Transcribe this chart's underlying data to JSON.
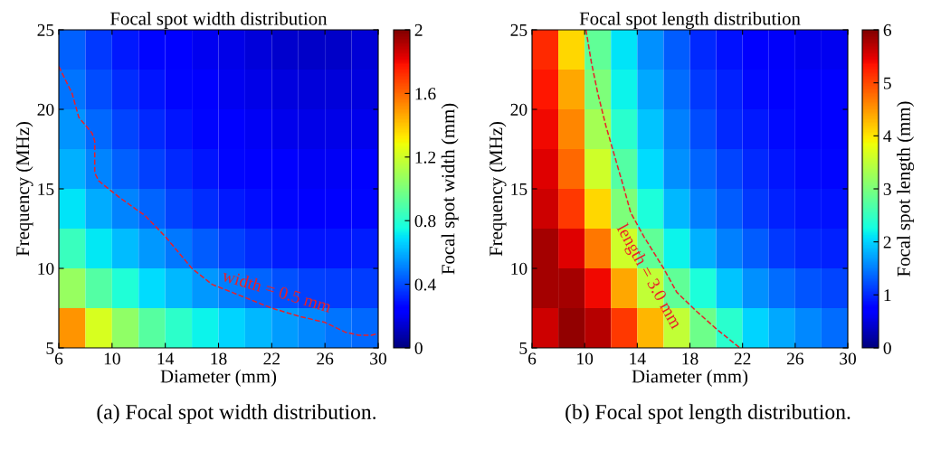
{
  "chart_data": [
    {
      "type": "heatmap",
      "title": "Focal spot width distribution",
      "xlabel": "Diameter (mm)",
      "ylabel": "Frequency (MHz)",
      "clabel": "Focal spot width (mm)",
      "x": [
        7,
        9,
        11,
        13,
        15,
        17,
        19,
        21,
        23,
        25,
        27,
        29
      ],
      "y": [
        23.75,
        21.25,
        18.75,
        16.25,
        13.75,
        11.25,
        8.75,
        6.25
      ],
      "cells": [
        [
          0.44,
          0.36,
          0.3,
          0.26,
          0.23,
          0.2,
          0.18,
          0.16,
          0.14,
          0.13,
          0.13,
          0.15
        ],
        [
          0.48,
          0.4,
          0.34,
          0.29,
          0.26,
          0.23,
          0.2,
          0.18,
          0.17,
          0.16,
          0.16,
          0.17
        ],
        [
          0.54,
          0.46,
          0.39,
          0.33,
          0.29,
          0.26,
          0.23,
          0.21,
          0.19,
          0.18,
          0.18,
          0.19
        ],
        [
          0.6,
          0.51,
          0.44,
          0.38,
          0.33,
          0.29,
          0.26,
          0.24,
          0.22,
          0.21,
          0.21,
          0.22
        ],
        [
          0.7,
          0.59,
          0.51,
          0.45,
          0.39,
          0.34,
          0.3,
          0.28,
          0.26,
          0.25,
          0.25,
          0.26
        ],
        [
          0.84,
          0.71,
          0.62,
          0.55,
          0.49,
          0.43,
          0.38,
          0.34,
          0.31,
          0.29,
          0.29,
          0.31
        ],
        [
          1.07,
          0.9,
          0.78,
          0.68,
          0.61,
          0.55,
          0.5,
          0.45,
          0.41,
          0.38,
          0.37,
          0.37
        ],
        [
          1.5,
          1.22,
          1.05,
          0.91,
          0.81,
          0.73,
          0.67,
          0.61,
          0.56,
          0.52,
          0.48,
          0.46
        ]
      ],
      "xlim": [
        6,
        30
      ],
      "xticks": [
        6,
        10,
        14,
        18,
        22,
        26,
        30
      ],
      "ylim": [
        5,
        25
      ],
      "yticks": [
        5,
        10,
        15,
        20,
        25
      ],
      "clim": [
        0,
        2
      ],
      "cticks": [
        0,
        0.4,
        0.8,
        1.2,
        1.6,
        2
      ],
      "series": [
        {
          "type": "line",
          "color": "#e8202a",
          "line_style": "dashed",
          "x": [
            6,
            7,
            7.5,
            8.5,
            8.7,
            8.7,
            9,
            10.5,
            12.5,
            14,
            16,
            17.5,
            19,
            22,
            24,
            26,
            27.5,
            28.5,
            29.5,
            30
          ],
          "values": [
            22.7,
            21,
            19.5,
            18.5,
            18,
            16,
            15.5,
            14.5,
            13.3,
            12,
            10,
            9,
            8.5,
            7.5,
            7,
            6.6,
            6,
            5.8,
            5.8,
            5.9
          ]
        }
      ],
      "annotations": [
        {
          "text": "width = 0.5 mm",
          "x": 22,
          "y": 7.5
        },
        "(a) Focal spot width distribution."
      ]
    },
    {
      "type": "heatmap",
      "title": "Focal spot length distribution",
      "xlabel": "Diameter (mm)",
      "ylabel": "Frequency (MHz)",
      "clabel": "Focal spot length (mm)",
      "x": [
        7,
        9,
        11,
        13,
        15,
        17,
        19,
        21,
        23,
        25,
        27,
        29
      ],
      "y": [
        23.75,
        21.25,
        18.75,
        16.25,
        13.75,
        11.25,
        8.75,
        6.25
      ],
      "cells": [
        [
          5.2,
          4.1,
          2.8,
          2.1,
          1.6,
          1.3,
          1.0,
          0.85,
          0.75,
          0.65,
          0.6,
          0.6
        ],
        [
          5.3,
          4.4,
          3.0,
          2.2,
          1.75,
          1.4,
          1.1,
          0.95,
          0.82,
          0.75,
          0.7,
          0.68
        ],
        [
          5.4,
          4.6,
          3.3,
          2.4,
          1.9,
          1.5,
          1.2,
          1.0,
          0.9,
          0.8,
          0.75,
          0.72
        ],
        [
          5.5,
          4.8,
          3.6,
          2.7,
          2.05,
          1.6,
          1.35,
          1.15,
          1.0,
          0.88,
          0.8,
          0.78
        ],
        [
          5.6,
          5.1,
          4.1,
          3.0,
          2.3,
          1.85,
          1.5,
          1.3,
          1.1,
          0.95,
          0.88,
          0.85
        ],
        [
          5.8,
          5.5,
          4.7,
          3.6,
          2.8,
          2.2,
          1.8,
          1.5,
          1.3,
          1.1,
          1.0,
          0.95
        ],
        [
          5.8,
          5.8,
          5.4,
          4.4,
          3.5,
          2.8,
          2.3,
          1.9,
          1.6,
          1.4,
          1.25,
          1.15
        ],
        [
          5.6,
          5.9,
          5.7,
          5.1,
          4.3,
          3.5,
          2.9,
          2.4,
          2.0,
          1.75,
          1.55,
          1.4
        ]
      ],
      "xlim": [
        6,
        30
      ],
      "xticks": [
        6,
        10,
        14,
        18,
        22,
        26,
        30
      ],
      "ylim": [
        5,
        25
      ],
      "yticks": [
        5,
        10,
        15,
        20,
        25
      ],
      "clim": [
        0,
        6
      ],
      "cticks": [
        0,
        1,
        2,
        3,
        4,
        5,
        6
      ],
      "series": [
        {
          "type": "line",
          "color": "#e8202a",
          "line_style": "dashed",
          "x": [
            10.1,
            10.5,
            11,
            11.6,
            12.3,
            13,
            13.5,
            14.5,
            16,
            17,
            18.5,
            20,
            21.8
          ],
          "values": [
            25,
            23,
            21,
            19,
            17,
            15,
            13.5,
            12,
            10,
            8.5,
            7.3,
            6.2,
            5
          ]
        }
      ],
      "annotations": [
        {
          "text": "length = 3.0 mm",
          "x": 16,
          "y": 10
        },
        "(b) Focal spot length distribution."
      ]
    }
  ]
}
